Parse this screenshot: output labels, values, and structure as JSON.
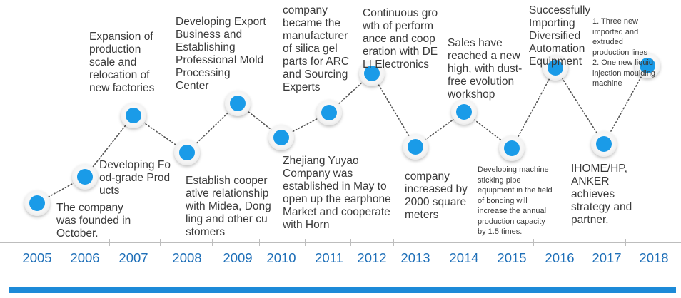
{
  "timeline": [
    {
      "year": "2005",
      "text": "The company\nwas founded in\nOctober."
    },
    {
      "year": "2006",
      "text": "Developing Fo\nod-grade Prod\nucts"
    },
    {
      "year": "2007",
      "text": "Expansion of\nproduction\nscale and\nrelocation of\nnew factories"
    },
    {
      "year": "2008",
      "text": "Establish cooper\native relationship\nwith Midea, Dong\nling and other cu\nstomers"
    },
    {
      "year": "2009",
      "text": "Developing Export\nBusiness and\nEstablishing\nProfessional Mold\nProcessing\nCenter"
    },
    {
      "year": "2010",
      "text": "Zhejiang Yuyao\nCompany was\nestablished in May to\nopen up the earphone\nMarket and cooperate\nwith Horn"
    },
    {
      "year": "2011",
      "text": "company\nbecame the\nmanufacturer\nof silica gel\nparts for ARC\nand Sourcing\nExperts"
    },
    {
      "year": "2012",
      "text": "Continuous gro\nwth of perform\nance and coop\neration with DE\nLI Electronics"
    },
    {
      "year": "2013",
      "text": "company\nincreased by\n2000 square\nmeters"
    },
    {
      "year": "2014",
      "text": "Sales have\nreached a new\nhigh, with dust-\nfree evolution\nworkshop"
    },
    {
      "year": "2015",
      "text": "Developing machine\nsticking pipe\nequipment in the field\nof bonding will\nincrease the annual\nproduction capacity\nby 1.5 times."
    },
    {
      "year": "2016",
      "text": "Successfully\nImporting\nDiversified\nAutomation\nEquipment"
    },
    {
      "year": "2017",
      "text": "IHOME/HP,\nANKER\nachieves\nstrategy and\npartner."
    },
    {
      "year": "2018",
      "text": "1. Three  new\nimported and\nextruded\nproduction lines\n2. One new liquid\ninjection moulding\nmachine"
    }
  ],
  "colors": {
    "accent": "#1a9be8",
    "year_text": "#1e6fb8",
    "bottom_bar": "#1c8ad8"
  }
}
